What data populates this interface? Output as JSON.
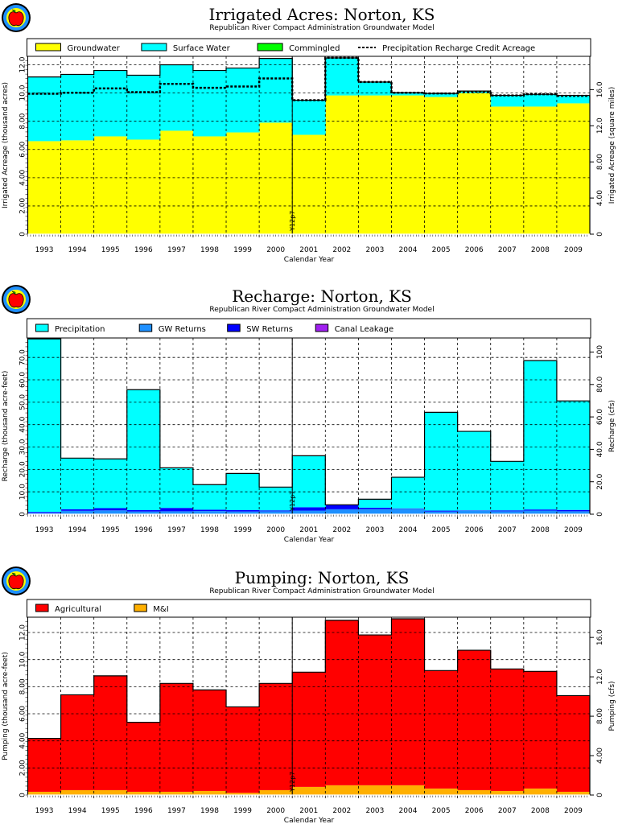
{
  "chart_data": [
    {
      "type": "bar",
      "stacked": true,
      "title": "Irrigated Acres: Norton, KS",
      "subtitle": "Republican River Compact Administration Groundwater Model",
      "xlabel": "Calendar Year",
      "ylabel": "Irrigated Acreage (thousand acres)",
      "ylabel_right": "Irrigated Acreage (square miles)",
      "ylim": [
        0,
        12.6
      ],
      "yticks": [
        0,
        2,
        4,
        6,
        8,
        10,
        12
      ],
      "ytick_labels": [
        "0",
        "2.00",
        "4.00",
        "6.00",
        "8.00",
        "10.0",
        "12.0"
      ],
      "right_factor": 1.5625,
      "right_ticks": [
        0,
        4,
        8,
        12,
        16
      ],
      "right_tick_labels": [
        "0",
        "4.00",
        "8.00",
        "12.0",
        "16.0"
      ],
      "categories": [
        "1993",
        "1994",
        "1995",
        "1996",
        "1997",
        "1998",
        "1999",
        "2000",
        "2001",
        "2002",
        "2003",
        "2004",
        "2005",
        "2006",
        "2007",
        "2008",
        "2009"
      ],
      "series": [
        {
          "name": "Groundwater",
          "color": "#ffff00",
          "values": [
            6.59,
            6.65,
            6.93,
            6.7,
            7.33,
            6.93,
            7.21,
            7.9,
            7.04,
            9.83,
            9.83,
            9.83,
            9.72,
            9.99,
            9.04,
            9.04,
            9.27
          ]
        },
        {
          "name": "Surface Water",
          "color": "#00ffff",
          "values": [
            4.55,
            4.67,
            4.67,
            4.56,
            4.67,
            4.67,
            4.56,
            4.55,
            2.45,
            2.66,
            0.95,
            0.19,
            0.25,
            0.11,
            0.79,
            0.87,
            0.56
          ]
        },
        {
          "name": "Commingled",
          "color": "#00ff00",
          "values": [
            0,
            0,
            0,
            0,
            0,
            0,
            0,
            0,
            0,
            0,
            0,
            0,
            0,
            0.04,
            0,
            0,
            0
          ]
        }
      ],
      "line_series": {
        "name": "Precipitation Recharge Credit Acreage",
        "values": [
          9.95,
          10.02,
          10.33,
          10.06,
          10.65,
          10.37,
          10.46,
          11.03,
          9.49,
          12.49,
          10.78,
          10.02,
          9.97,
          10.1,
          9.83,
          9.91,
          9.8
        ]
      },
      "annotation": {
        "text": "Y12p7",
        "after_category": "2000"
      }
    },
    {
      "type": "bar",
      "stacked": true,
      "title": "Recharge: Norton, KS",
      "subtitle": "Republican River Compact Administration Groundwater Model",
      "xlabel": "Calendar Year",
      "ylabel": "Recharge (thousand acre-feet)",
      "ylabel_right": "Recharge (cfs)",
      "ylim": [
        0,
        78.7
      ],
      "yticks": [
        0,
        10,
        20,
        30,
        40,
        50,
        60,
        70
      ],
      "ytick_labels": [
        "0",
        "10.0",
        "20.0",
        "30.0",
        "40.0",
        "50.0",
        "60.0",
        "70.0"
      ],
      "right_factor": 1.381,
      "right_ticks": [
        0,
        20,
        40,
        60,
        80,
        100
      ],
      "right_tick_labels": [
        "0",
        "20.0",
        "40.0",
        "60.0",
        "80.0",
        "100"
      ],
      "categories": [
        "1993",
        "1994",
        "1995",
        "1996",
        "1997",
        "1998",
        "1999",
        "2000",
        "2001",
        "2002",
        "2003",
        "2004",
        "2005",
        "2006",
        "2007",
        "2008",
        "2009"
      ],
      "series": [
        {
          "name": "GW Returns",
          "color": "#1e90ff",
          "values": [
            0.5,
            1.5,
            1.7,
            1.2,
            1.3,
            1.4,
            1.2,
            1.3,
            1.6,
            2.2,
            2.3,
            2.4,
            1.2,
            1.5,
            1.3,
            1.6,
            1.3
          ]
        },
        {
          "name": "SW Returns",
          "color": "#0000ff",
          "values": [
            0.5,
            0.7,
            1.0,
            0.6,
            1.5,
            0.6,
            0.6,
            0.4,
            1.5,
            1.9,
            0.6,
            0.2,
            0.4,
            0.2,
            0.4,
            0.5,
            0.6
          ]
        },
        {
          "name": "Canal Leakage",
          "color": "#a020f0",
          "values": [
            0,
            0,
            0,
            0,
            0,
            0,
            0,
            0,
            0,
            0.1,
            0,
            0,
            0,
            0,
            0,
            0,
            0
          ]
        },
        {
          "name": "Precipitation",
          "color": "#00ffff",
          "values": [
            77.3,
            22.85,
            22.0,
            53.8,
            17.9,
            11.2,
            16.4,
            10.4,
            23.0,
            0,
            3.8,
            13.9,
            43.9,
            35.3,
            21.9,
            66.5,
            48.7
          ]
        }
      ],
      "legend_order": [
        "Precipitation",
        "GW Returns",
        "SW Returns",
        "Canal Leakage"
      ],
      "annotation": {
        "text": "Y12p7",
        "after_category": "2000"
      }
    },
    {
      "type": "bar",
      "stacked": true,
      "title": "Pumping: Norton, KS",
      "subtitle": "Republican River Compact Administration Groundwater Model",
      "xlabel": "Calendar Year",
      "ylabel": "Pumping (thousand acre-feet)",
      "ylabel_right": "Pumping (cfs)",
      "ylim": [
        0,
        13.13
      ],
      "yticks": [
        0,
        2,
        4,
        6,
        8,
        10,
        12
      ],
      "ytick_labels": [
        "0",
        "2.00",
        "4.00",
        "6.00",
        "8.00",
        "10.0",
        "12.0"
      ],
      "right_factor": 1.375,
      "right_ticks": [
        0,
        4,
        8,
        12,
        16
      ],
      "right_tick_labels": [
        "0",
        "4.00",
        "8.00",
        "12.0",
        "16.0"
      ],
      "categories": [
        "1993",
        "1994",
        "1995",
        "1996",
        "1997",
        "1998",
        "1999",
        "2000",
        "2001",
        "2002",
        "2003",
        "2004",
        "2005",
        "2006",
        "2007",
        "2008",
        "2009"
      ],
      "series": [
        {
          "name": "M&I",
          "color": "#ffb000",
          "values": [
            0.24,
            0.36,
            0.36,
            0.24,
            0.24,
            0.3,
            0.16,
            0.36,
            0.6,
            0.72,
            0.72,
            0.72,
            0.48,
            0.36,
            0.3,
            0.48,
            0.24
          ]
        },
        {
          "name": "Agricultural",
          "color": "#ff0000",
          "values": [
            3.94,
            7.04,
            8.44,
            5.13,
            8.0,
            7.46,
            6.35,
            7.88,
            8.47,
            12.18,
            11.1,
            12.29,
            8.71,
            10.33,
            9.01,
            8.65,
            7.1
          ]
        }
      ],
      "legend_order": [
        "Agricultural",
        "M&I"
      ],
      "annotation": {
        "text": "Y12p7",
        "after_category": "2000"
      }
    }
  ],
  "logo": {
    "alt_text": "Republican River Compact Administration"
  }
}
